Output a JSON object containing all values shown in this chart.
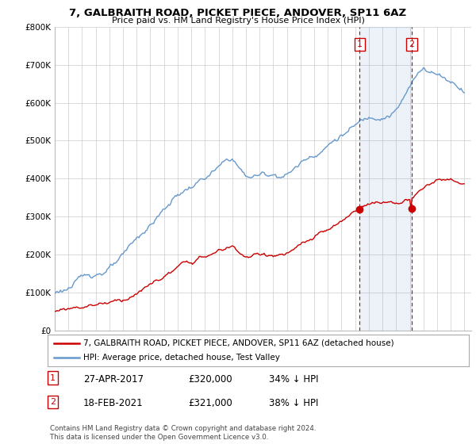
{
  "title": "7, GALBRAITH ROAD, PICKET PIECE, ANDOVER, SP11 6AZ",
  "subtitle": "Price paid vs. HM Land Registry's House Price Index (HPI)",
  "ylim": [
    0,
    800000
  ],
  "yticks": [
    0,
    100000,
    200000,
    300000,
    400000,
    500000,
    600000,
    700000,
    800000
  ],
  "hpi_color": "#6699cc",
  "price_color": "#cc0000",
  "sale1_x": 2017.33,
  "sale1_price": 320000,
  "sale1_hpi": 480000,
  "sale2_x": 2021.12,
  "sale2_price": 321000,
  "sale2_hpi": 518000,
  "sale1_date": "27-APR-2017",
  "sale2_date": "18-FEB-2021",
  "sale1_pct": "34% ↓ HPI",
  "sale2_pct": "38% ↓ HPI",
  "legend_line1": "7, GALBRAITH ROAD, PICKET PIECE, ANDOVER, SP11 6AZ (detached house)",
  "legend_line2": "HPI: Average price, detached house, Test Valley",
  "footnote": "Contains HM Land Registry data © Crown copyright and database right 2024.\nThis data is licensed under the Open Government Licence v3.0.",
  "background_color": "#ffffff",
  "grid_color": "#cccccc",
  "xlim_start": 1995,
  "xlim_end": 2025.5
}
